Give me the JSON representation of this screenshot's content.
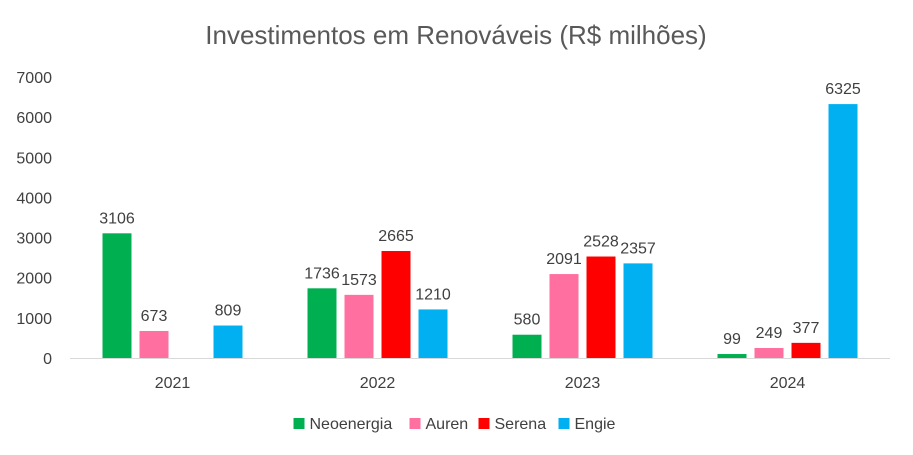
{
  "chart_data": {
    "type": "bar",
    "title": "Investimentos em Renováveis (R$ milhões)",
    "xlabel": "",
    "ylabel": "",
    "categories": [
      "2021",
      "2022",
      "2023",
      "2024"
    ],
    "ylim": [
      0,
      7000
    ],
    "yticks": [
      0,
      1000,
      2000,
      3000,
      4000,
      5000,
      6000,
      7000
    ],
    "grid": false,
    "legend_position": "bottom",
    "series": [
      {
        "name": "Neoenergia",
        "color": "#00B050",
        "values": [
          3106,
          1736,
          580,
          99
        ]
      },
      {
        "name": "Auren",
        "color": "#FF6F9F",
        "values": [
          673,
          1573,
          2091,
          249
        ]
      },
      {
        "name": "Serena",
        "color": "#FF0000",
        "values": [
          null,
          2665,
          2528,
          377
        ]
      },
      {
        "name": "Engie",
        "color": "#00B0F0",
        "values": [
          809,
          1210,
          2357,
          6325
        ]
      }
    ]
  }
}
